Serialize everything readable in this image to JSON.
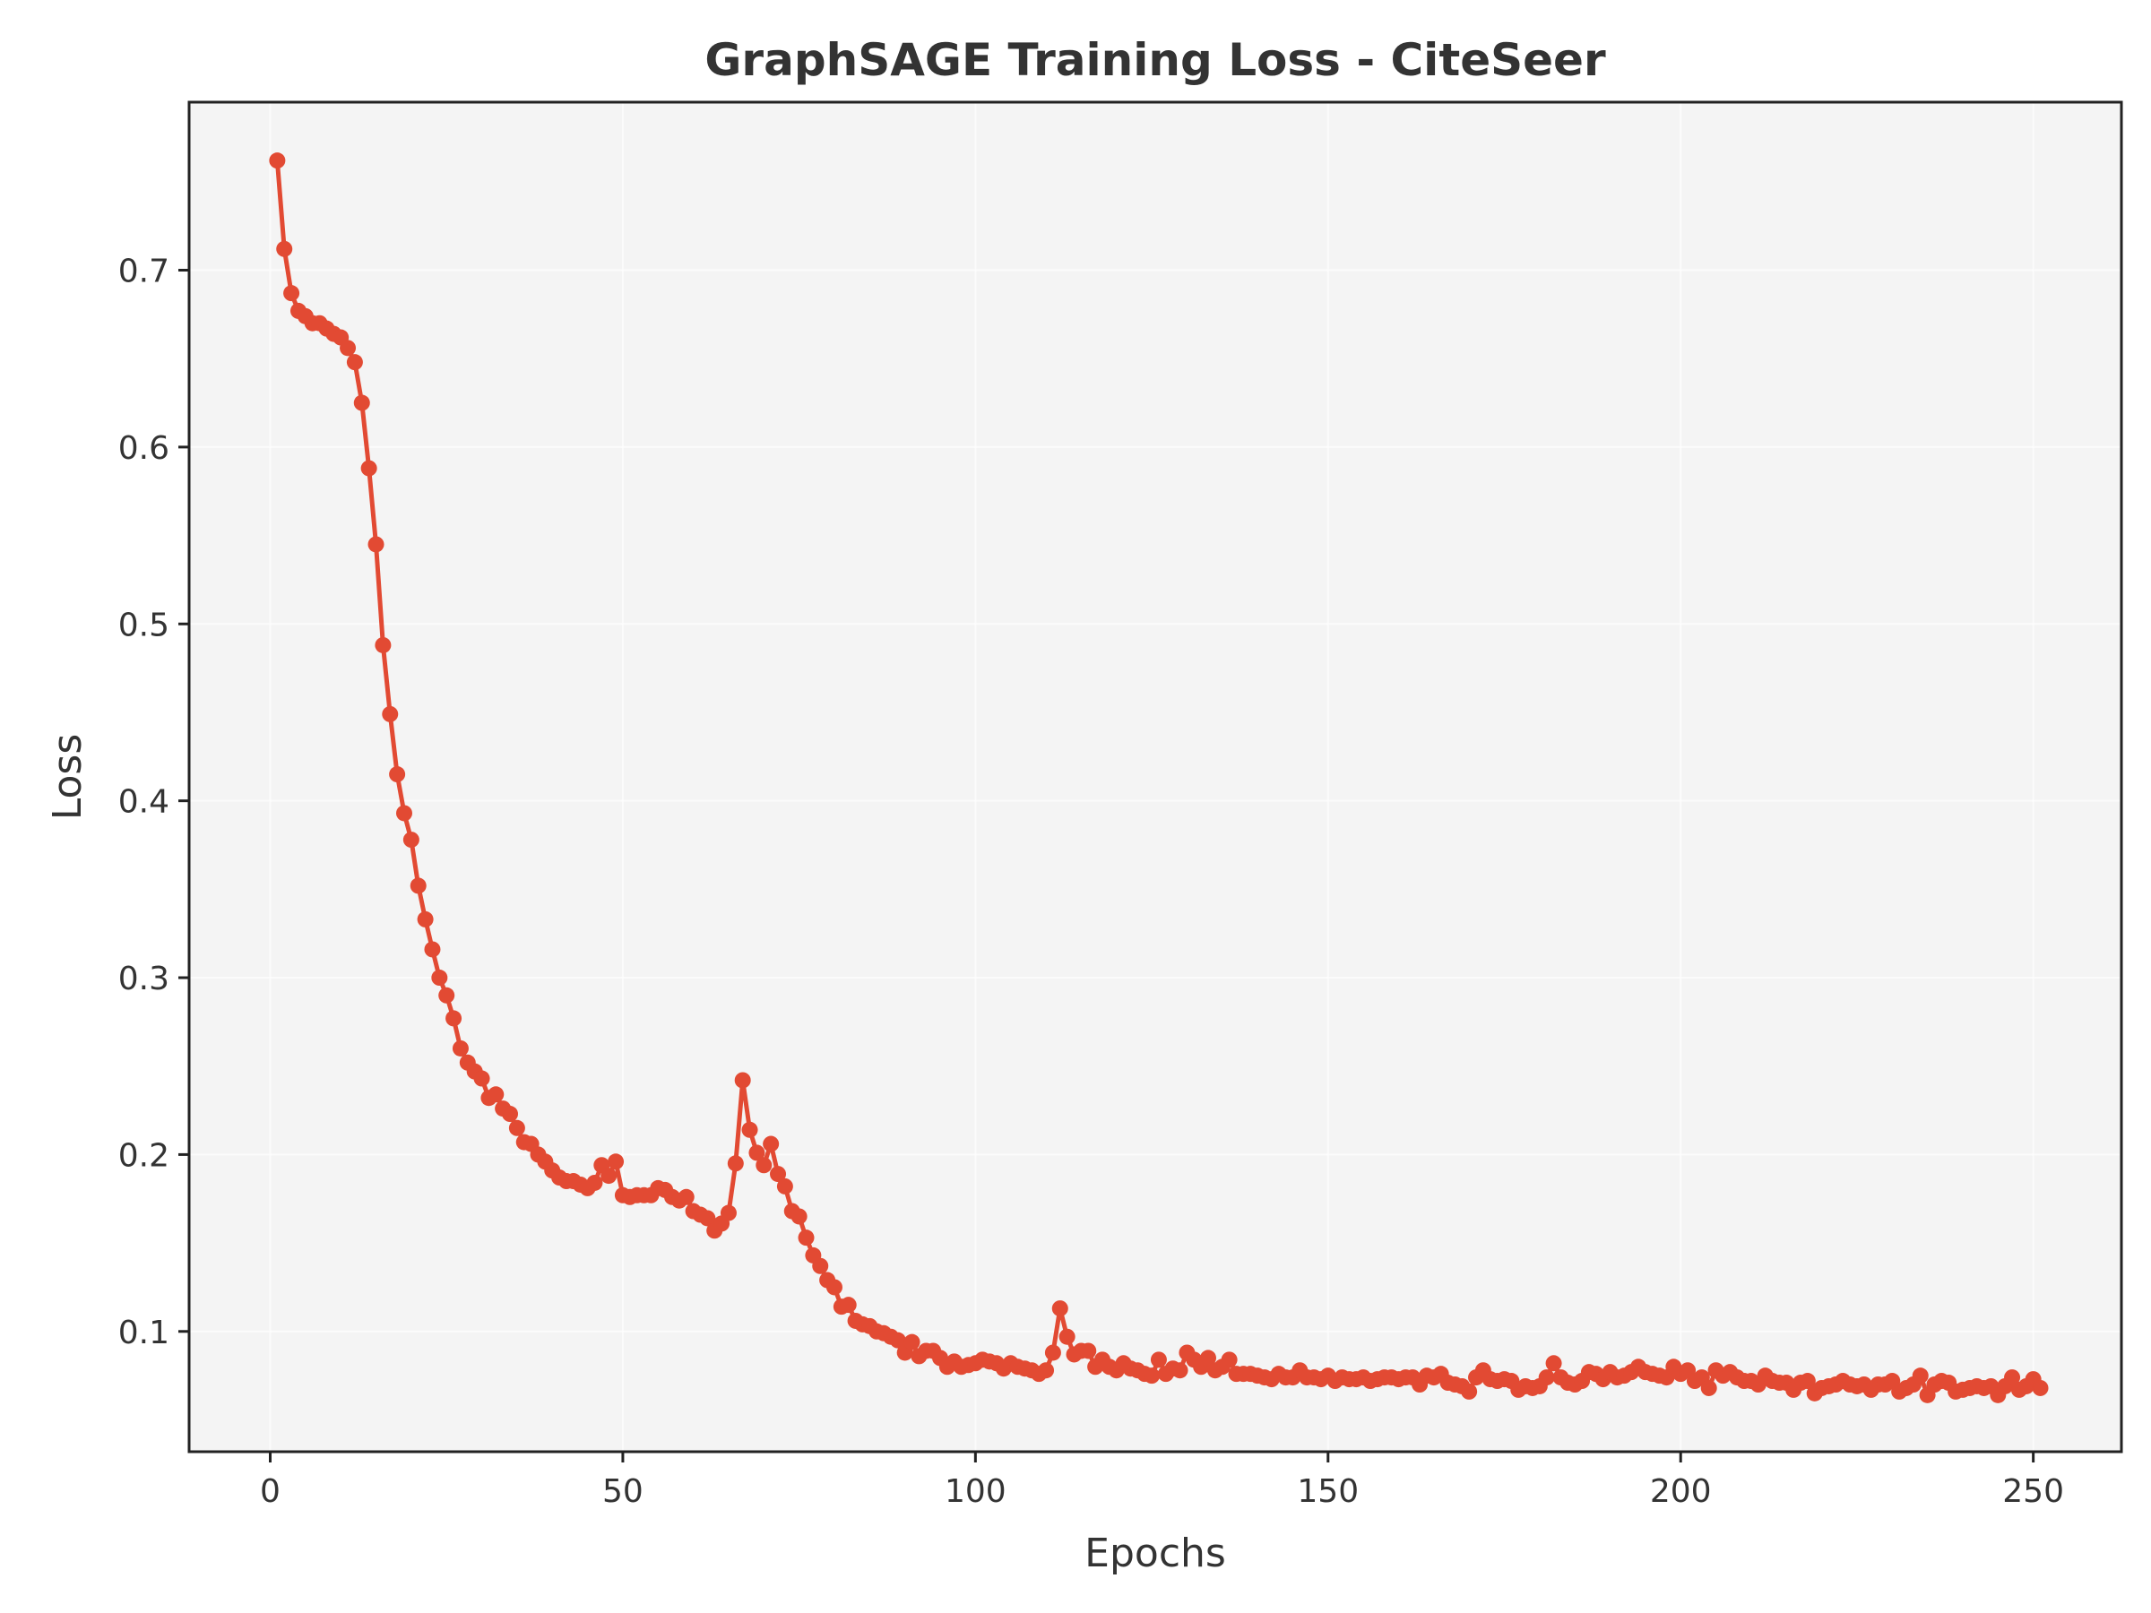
{
  "colors": {
    "line": "#e24a33",
    "plot_bg": "#f4f4f4",
    "grid": "#ffffff",
    "axis": "#222222",
    "text": "#333333"
  },
  "chart_data": {
    "type": "line",
    "title": "GraphSAGE Training Loss - CiteSeer",
    "xlabel": "Epochs",
    "ylabel": "Loss",
    "xlim": [
      -11.5,
      262.5
    ],
    "ylim": [
      0.032,
      0.795
    ],
    "xticks": [
      0,
      50,
      100,
      150,
      200,
      250
    ],
    "xtick_labels": [
      "0",
      "50",
      "100",
      "150",
      "200",
      "250"
    ],
    "yticks": [
      0.1,
      0.2,
      0.3,
      0.4,
      0.5,
      0.6,
      0.7
    ],
    "ytick_labels": [
      "0.1",
      "0.2",
      "0.3",
      "0.4",
      "0.5",
      "0.6",
      "0.7"
    ],
    "grid": true,
    "markers": true,
    "x_start": 1,
    "series": [
      {
        "values": [
          0.762,
          0.712,
          0.687,
          0.677,
          0.674,
          0.67,
          0.67,
          0.667,
          0.664,
          0.662,
          0.656,
          0.648,
          0.625,
          0.588,
          0.545,
          0.488,
          0.449,
          0.415,
          0.393,
          0.378,
          0.352,
          0.333,
          0.316,
          0.3,
          0.29,
          0.277,
          0.26,
          0.252,
          0.247,
          0.243,
          0.232,
          0.234,
          0.226,
          0.223,
          0.215,
          0.207,
          0.206,
          0.2,
          0.196,
          0.191,
          0.187,
          0.185,
          0.185,
          0.183,
          0.181,
          0.184,
          0.194,
          0.188,
          0.196,
          0.177,
          0.176,
          0.177,
          0.177,
          0.177,
          0.181,
          0.18,
          0.176,
          0.174,
          0.176,
          0.168,
          0.166,
          0.164,
          0.157,
          0.161,
          0.167,
          0.195,
          0.242,
          0.214,
          0.201,
          0.194,
          0.206,
          0.189,
          0.182,
          0.168,
          0.165,
          0.153,
          0.143,
          0.137,
          0.129,
          0.125,
          0.114,
          0.115,
          0.106,
          0.104,
          0.103,
          0.1,
          0.099,
          0.097,
          0.095,
          0.088,
          0.094,
          0.086,
          0.089,
          0.089,
          0.085,
          0.08,
          0.083,
          0.08,
          0.081,
          0.082,
          0.084,
          0.083,
          0.082,
          0.079,
          0.082,
          0.08,
          0.079,
          0.078,
          0.076,
          0.078,
          0.088,
          0.113,
          0.097,
          0.087,
          0.089,
          0.089,
          0.08,
          0.084,
          0.08,
          0.078,
          0.082,
          0.079,
          0.078,
          0.076,
          0.075,
          0.084,
          0.076,
          0.079,
          0.078,
          0.088,
          0.084,
          0.08,
          0.085,
          0.078,
          0.08,
          0.084,
          0.076,
          0.076,
          0.076,
          0.075,
          0.074,
          0.073,
          0.076,
          0.074,
          0.074,
          0.078,
          0.074,
          0.074,
          0.073,
          0.075,
          0.072,
          0.074,
          0.073,
          0.073,
          0.074,
          0.072,
          0.073,
          0.074,
          0.074,
          0.073,
          0.074,
          0.074,
          0.07,
          0.075,
          0.074,
          0.076,
          0.071,
          0.07,
          0.069,
          0.066,
          0.074,
          0.078,
          0.073,
          0.072,
          0.073,
          0.072,
          0.067,
          0.069,
          0.068,
          0.069,
          0.074,
          0.082,
          0.074,
          0.071,
          0.07,
          0.072,
          0.077,
          0.076,
          0.073,
          0.077,
          0.074,
          0.075,
          0.077,
          0.08,
          0.077,
          0.076,
          0.075,
          0.074,
          0.08,
          0.076,
          0.078,
          0.072,
          0.074,
          0.068,
          0.078,
          0.075,
          0.077,
          0.074,
          0.072,
          0.072,
          0.07,
          0.075,
          0.072,
          0.071,
          0.071,
          0.067,
          0.071,
          0.072,
          0.065,
          0.068,
          0.069,
          0.07,
          0.072,
          0.07,
          0.069,
          0.07,
          0.067,
          0.07,
          0.07,
          0.072,
          0.066,
          0.068,
          0.07,
          0.075,
          0.064,
          0.07,
          0.072,
          0.071,
          0.066,
          0.067,
          0.068,
          0.069,
          0.068,
          0.069,
          0.064,
          0.069,
          0.074,
          0.067,
          0.069,
          0.073,
          0.068
        ]
      }
    ]
  }
}
